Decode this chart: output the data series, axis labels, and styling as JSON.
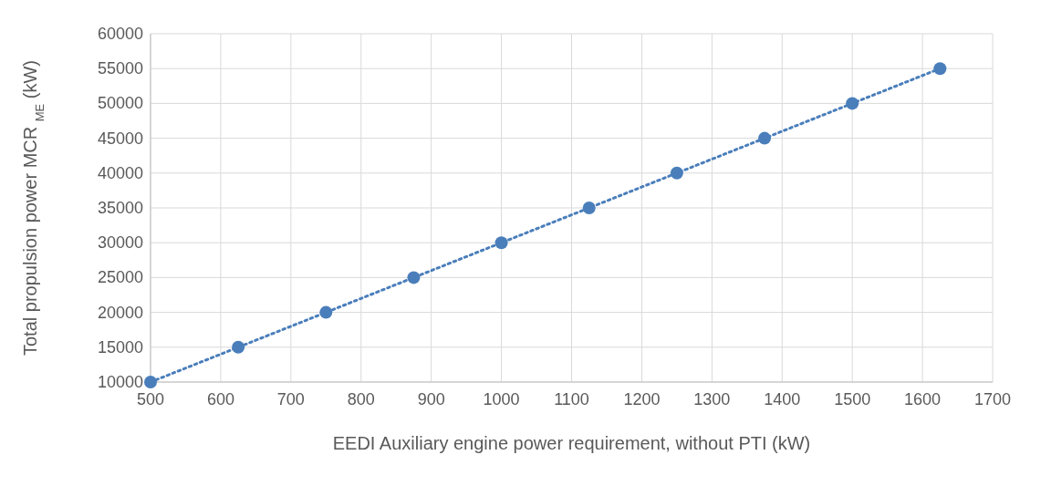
{
  "chart_data": {
    "type": "scatter",
    "xlabel": "EEDI Auxiliary engine power requirement, without PTI (kW)",
    "ylabel": "Total propulsion power MCR $_{ME}$ (kW)",
    "x": [
      500,
      625,
      750,
      875,
      1000,
      1125,
      1250,
      1375,
      1500,
      1625
    ],
    "series": [
      {
        "color": "#4a7ebb",
        "marker": "circle",
        "values": [
          10000,
          15000,
          20000,
          25000,
          30000,
          35000,
          40000,
          45000,
          50000,
          55000
        ]
      },
      {
        "type": "line",
        "color": "#4a7ebb",
        "line_style": "dotted",
        "marker": "none",
        "x": [
          500,
          1625
        ],
        "values": [
          10000,
          55000
        ]
      }
    ],
    "xlim": [
      500,
      1700
    ],
    "xticks": [
      500,
      600,
      700,
      800,
      900,
      1000,
      1100,
      1200,
      1300,
      1400,
      1500,
      1600,
      1700
    ],
    "ylim": [
      10000,
      60000
    ],
    "yticks": [
      10000,
      15000,
      20000,
      25000,
      30000,
      35000,
      40000,
      45000,
      50000,
      55000,
      60000
    ],
    "grid": true
  }
}
